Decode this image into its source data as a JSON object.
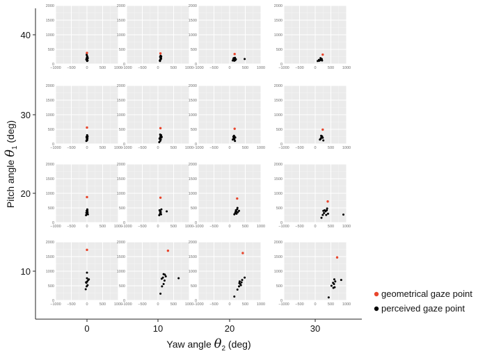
{
  "figure": {
    "xlabel": {
      "main": "Yaw angle ",
      "symbol": "θ",
      "subscript": "2",
      "unit": " (deg)"
    },
    "ylabel": {
      "main": "Pitch angle ",
      "symbol": "θ",
      "subscript": "1",
      "unit": " (deg)"
    },
    "legend": {
      "position": "right",
      "items": [
        {
          "label": "geometrical gaze point",
          "color": "#e8452c"
        },
        {
          "label": "perceived gaze point",
          "color": "#000000"
        }
      ]
    }
  },
  "chart_data": {
    "type": "scatter",
    "facet_columns_yaw_deg": [
      0,
      10,
      20,
      30
    ],
    "facet_rows_pitch_deg": [
      40,
      30,
      20,
      10
    ],
    "outer_x_ticks": [
      "0",
      "10",
      "20",
      "30"
    ],
    "outer_y_ticks": [
      "40",
      "30",
      "20",
      "10"
    ],
    "panel_axes": {
      "xlim": [
        -1000,
        1000
      ],
      "ylim": [
        0,
        2000
      ],
      "x_ticks": [
        -1000,
        -500,
        0,
        500,
        1000
      ],
      "y_ticks": [
        0,
        500,
        1000,
        1500,
        2000
      ],
      "grid": true,
      "background": "#ebebeb"
    },
    "panels": [
      {
        "pitch": 40,
        "yaw": 0,
        "geometrical": [
          0,
          380
        ],
        "perceived": [
          [
            -20,
            150
          ],
          [
            10,
            180
          ],
          [
            -5,
            210
          ],
          [
            15,
            240
          ],
          [
            0,
            280
          ],
          [
            -10,
            320
          ],
          [
            20,
            120
          ],
          [
            5,
            100
          ],
          [
            -15,
            170
          ],
          [
            25,
            200
          ]
        ]
      },
      {
        "pitch": 40,
        "yaw": 10,
        "geometrical": [
          80,
          360
        ],
        "perceived": [
          [
            60,
            120
          ],
          [
            80,
            160
          ],
          [
            90,
            200
          ],
          [
            70,
            240
          ],
          [
            100,
            180
          ],
          [
            85,
            280
          ],
          [
            75,
            140
          ],
          [
            95,
            220
          ],
          [
            65,
            100
          ],
          [
            105,
            260
          ]
        ]
      },
      {
        "pitch": 40,
        "yaw": 20,
        "geometrical": [
          160,
          340
        ],
        "perceived": [
          [
            100,
            120
          ],
          [
            140,
            150
          ],
          [
            170,
            180
          ],
          [
            130,
            200
          ],
          [
            180,
            130
          ],
          [
            150,
            110
          ],
          [
            200,
            160
          ],
          [
            170,
            210
          ],
          [
            120,
            170
          ],
          [
            480,
            170
          ]
        ]
      },
      {
        "pitch": 40,
        "yaw": 30,
        "geometrical": [
          240,
          320
        ],
        "perceived": [
          [
            80,
            100
          ],
          [
            130,
            110
          ],
          [
            160,
            130
          ],
          [
            190,
            160
          ],
          [
            210,
            170
          ],
          [
            170,
            200
          ],
          [
            120,
            140
          ],
          [
            220,
            120
          ]
        ]
      },
      {
        "pitch": 30,
        "yaw": 0,
        "geometrical": [
          0,
          560
        ],
        "perceived": [
          [
            -20,
            100
          ],
          [
            10,
            140
          ],
          [
            0,
            180
          ],
          [
            -10,
            220
          ],
          [
            20,
            260
          ],
          [
            5,
            300
          ],
          [
            -15,
            240
          ],
          [
            15,
            200
          ],
          [
            0,
            160
          ],
          [
            -5,
            120
          ]
        ]
      },
      {
        "pitch": 30,
        "yaw": 10,
        "geometrical": [
          80,
          540
        ],
        "perceived": [
          [
            40,
            60
          ],
          [
            70,
            100
          ],
          [
            90,
            150
          ],
          [
            60,
            200
          ],
          [
            110,
            220
          ],
          [
            80,
            260
          ],
          [
            100,
            300
          ],
          [
            70,
            320
          ],
          [
            50,
            180
          ],
          [
            120,
            240
          ]
        ]
      },
      {
        "pitch": 30,
        "yaw": 20,
        "geometrical": [
          160,
          520
        ],
        "perceived": [
          [
            100,
            150
          ],
          [
            130,
            200
          ],
          [
            160,
            240
          ],
          [
            140,
            280
          ],
          [
            180,
            220
          ],
          [
            150,
            160
          ],
          [
            120,
            250
          ],
          [
            170,
            100
          ]
        ]
      },
      {
        "pitch": 30,
        "yaw": 30,
        "geometrical": [
          240,
          490
        ],
        "perceived": [
          [
            150,
            150
          ],
          [
            180,
            190
          ],
          [
            200,
            230
          ],
          [
            220,
            260
          ],
          [
            190,
            280
          ],
          [
            240,
            210
          ],
          [
            170,
            170
          ],
          [
            260,
            120
          ],
          [
            210,
            250
          ]
        ]
      },
      {
        "pitch": 20,
        "yaw": 0,
        "geometrical": [
          0,
          870
        ],
        "perceived": [
          [
            -30,
            250
          ],
          [
            0,
            300
          ],
          [
            20,
            350
          ],
          [
            -10,
            400
          ],
          [
            10,
            450
          ],
          [
            -20,
            330
          ],
          [
            30,
            280
          ],
          [
            0,
            380
          ],
          [
            15,
            420
          ]
        ]
      },
      {
        "pitch": 20,
        "yaw": 10,
        "geometrical": [
          80,
          850
        ],
        "perceived": [
          [
            40,
            250
          ],
          [
            70,
            300
          ],
          [
            90,
            350
          ],
          [
            60,
            400
          ],
          [
            110,
            450
          ],
          [
            80,
            380
          ],
          [
            100,
            280
          ],
          [
            70,
            320
          ],
          [
            50,
            420
          ],
          [
            280,
            380
          ]
        ]
      },
      {
        "pitch": 20,
        "yaw": 20,
        "geometrical": [
          240,
          820
        ],
        "perceived": [
          [
            150,
            280
          ],
          [
            180,
            330
          ],
          [
            210,
            380
          ],
          [
            240,
            450
          ],
          [
            200,
            420
          ],
          [
            260,
            350
          ],
          [
            220,
            300
          ],
          [
            300,
            400
          ],
          [
            250,
            500
          ],
          [
            190,
            360
          ]
        ]
      },
      {
        "pitch": 20,
        "yaw": 30,
        "geometrical": [
          400,
          720
        ],
        "perceived": [
          [
            200,
            160
          ],
          [
            240,
            260
          ],
          [
            280,
            320
          ],
          [
            330,
            380
          ],
          [
            370,
            420
          ],
          [
            410,
            300
          ],
          [
            350,
            260
          ],
          [
            300,
            420
          ],
          [
            260,
            400
          ],
          [
            380,
            480
          ],
          [
            900,
            270
          ]
        ]
      },
      {
        "pitch": 10,
        "yaw": 0,
        "geometrical": [
          0,
          1730
        ],
        "perceived": [
          [
            -40,
            380
          ],
          [
            -10,
            480
          ],
          [
            20,
            520
          ],
          [
            -20,
            600
          ],
          [
            10,
            650
          ],
          [
            40,
            700
          ],
          [
            0,
            760
          ],
          [
            -30,
            620
          ],
          [
            60,
            720
          ],
          [
            0,
            950
          ]
        ]
      },
      {
        "pitch": 10,
        "yaw": 10,
        "geometrical": [
          320,
          1700
        ],
        "perceived": [
          [
            80,
            230
          ],
          [
            130,
            480
          ],
          [
            180,
            560
          ],
          [
            210,
            680
          ],
          [
            160,
            780
          ],
          [
            220,
            880
          ],
          [
            250,
            820
          ],
          [
            120,
            740
          ],
          [
            180,
            900
          ],
          [
            660,
            760
          ]
        ]
      },
      {
        "pitch": 10,
        "yaw": 20,
        "geometrical": [
          420,
          1620
        ],
        "perceived": [
          [
            150,
            130
          ],
          [
            250,
            370
          ],
          [
            300,
            480
          ],
          [
            340,
            560
          ],
          [
            380,
            620
          ],
          [
            310,
            590
          ],
          [
            360,
            520
          ],
          [
            320,
            650
          ],
          [
            400,
            700
          ],
          [
            480,
            780
          ]
        ]
      },
      {
        "pitch": 10,
        "yaw": 30,
        "geometrical": [
          700,
          1470
        ],
        "perceived": [
          [
            430,
            100
          ],
          [
            520,
            500
          ],
          [
            580,
            430
          ],
          [
            620,
            450
          ],
          [
            600,
            560
          ],
          [
            640,
            650
          ],
          [
            610,
            720
          ],
          [
            570,
            600
          ],
          [
            830,
            700
          ]
        ]
      }
    ]
  }
}
